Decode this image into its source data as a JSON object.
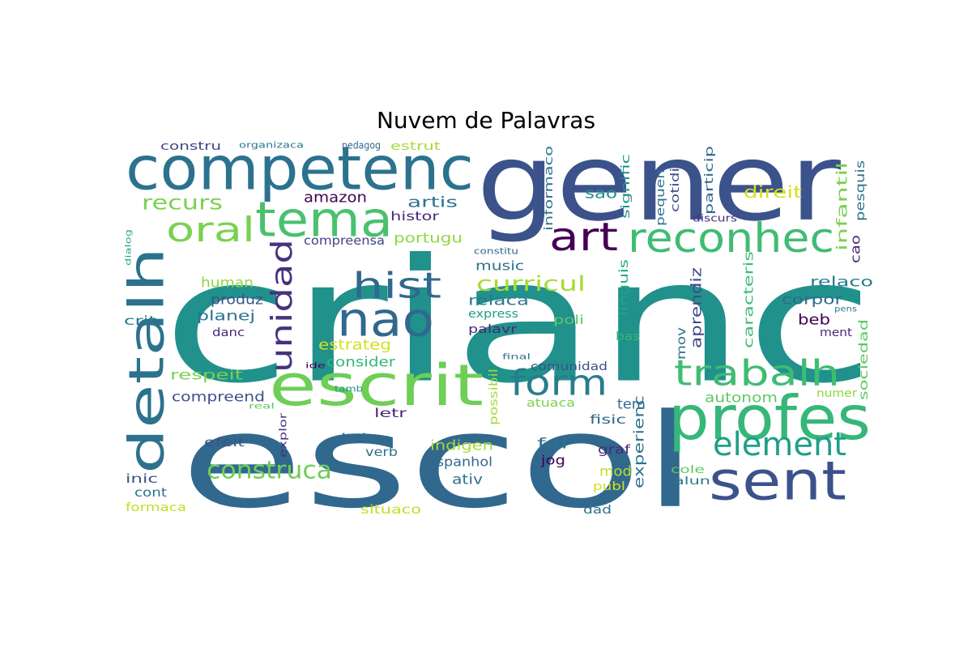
{
  "title": "Nuvem de Palavras",
  "words": [
    {
      "text": "crianc",
      "color": "#21918c"
    },
    {
      "text": "gener",
      "color": "#3b528b"
    },
    {
      "text": "escol",
      "color": "#31688e"
    },
    {
      "text": "competenc",
      "color": "#2c728e"
    },
    {
      "text": "profes",
      "color": "#35b779"
    },
    {
      "text": "escrit",
      "color": "#6ece58"
    },
    {
      "text": "nao",
      "color": "#31688e"
    },
    {
      "text": "tema",
      "color": "#4ac16d"
    },
    {
      "text": "sent",
      "color": "#3b528b"
    },
    {
      "text": "detalh",
      "color": "#2c728e"
    },
    {
      "text": "oral",
      "color": "#7ad151"
    },
    {
      "text": "reconhec",
      "color": "#3fbc73"
    },
    {
      "text": "art",
      "color": "#440154"
    },
    {
      "text": "form",
      "color": "#287c8e"
    },
    {
      "text": "trabalh",
      "color": "#3fbc73"
    },
    {
      "text": "element",
      "color": "#1f9e89"
    },
    {
      "text": "hist",
      "color": "#31688e"
    },
    {
      "text": "unidad",
      "color": "#46327e"
    },
    {
      "text": "construca",
      "color": "#6ece58"
    },
    {
      "text": "curricul",
      "color": "#a5db36"
    },
    {
      "text": "recurs",
      "color": "#7ad151"
    },
    {
      "text": "amazon",
      "color": "#440154"
    },
    {
      "text": "artis",
      "color": "#2c728e"
    },
    {
      "text": "histor",
      "color": "#482878"
    },
    {
      "text": "portugu",
      "color": "#90d743"
    },
    {
      "text": "compreensa",
      "color": "#414487"
    },
    {
      "text": "sao",
      "color": "#21918c"
    },
    {
      "text": "direit",
      "color": "#d2e21b"
    },
    {
      "text": "estrut",
      "color": "#a5db36"
    },
    {
      "text": "pedagog",
      "color": "#31688e"
    },
    {
      "text": "organizaca",
      "color": "#2a788e"
    },
    {
      "text": "constru",
      "color": "#414487"
    },
    {
      "text": "informaco",
      "color": "#2c728e"
    },
    {
      "text": "signific",
      "color": "#21918c"
    },
    {
      "text": "pequen",
      "color": "#2c728e"
    },
    {
      "text": "cotidi",
      "color": "#3b528b"
    },
    {
      "text": "particip",
      "color": "#31688e"
    },
    {
      "text": "discurs",
      "color": "#472d7b"
    },
    {
      "text": "infantil",
      "color": "#7ad151"
    },
    {
      "text": "pesquis",
      "color": "#2c728e"
    },
    {
      "text": "cao",
      "color": "#482878"
    },
    {
      "text": "relaco",
      "color": "#287c8e"
    },
    {
      "text": "corpor",
      "color": "#31688e"
    },
    {
      "text": "beb",
      "color": "#440154"
    },
    {
      "text": "ment",
      "color": "#482878"
    },
    {
      "text": "pens",
      "color": "#2a788e"
    },
    {
      "text": "sociedad",
      "color": "#5ec962"
    },
    {
      "text": "numer",
      "color": "#90d743"
    },
    {
      "text": "autonom",
      "color": "#5ec962"
    },
    {
      "text": "caracteris",
      "color": "#3fbc73"
    },
    {
      "text": "aprendiz",
      "color": "#3e4a89"
    },
    {
      "text": "linguis",
      "color": "#20a486"
    },
    {
      "text": "mov",
      "color": "#2c728e"
    },
    {
      "text": "bas",
      "color": "#35b779"
    },
    {
      "text": "poli",
      "color": "#5ec962"
    },
    {
      "text": "music",
      "color": "#2c728e"
    },
    {
      "text": "relaca",
      "color": "#2a788e"
    },
    {
      "text": "express",
      "color": "#1f9e89"
    },
    {
      "text": "palavr",
      "color": "#482878"
    },
    {
      "text": "human",
      "color": "#90d743"
    },
    {
      "text": "produz",
      "color": "#3b528b"
    },
    {
      "text": "planej",
      "color": "#2c728e"
    },
    {
      "text": "danc",
      "color": "#482878"
    },
    {
      "text": "crit",
      "color": "#2a788e"
    },
    {
      "text": "dialog",
      "color": "#22a884"
    },
    {
      "text": "estrateg",
      "color": "#d2e21b"
    },
    {
      "text": "consider",
      "color": "#35b779"
    },
    {
      "text": "respeit",
      "color": "#7ad151"
    },
    {
      "text": "compreend",
      "color": "#3b528b"
    },
    {
      "text": "comunidad",
      "color": "#3b528b"
    },
    {
      "text": "final",
      "color": "#2c728e"
    },
    {
      "text": "ide",
      "color": "#440154"
    },
    {
      "text": "tamb",
      "color": "#21918c"
    },
    {
      "text": "real",
      "color": "#5ec962"
    },
    {
      "text": "possibil",
      "color": "#a5db36"
    },
    {
      "text": "atuaca",
      "color": "#7ad151"
    },
    {
      "text": "tem",
      "color": "#31688e"
    },
    {
      "text": "experienc",
      "color": "#2c728e"
    },
    {
      "text": "fisic",
      "color": "#31688e"
    },
    {
      "text": "letr",
      "color": "#482878"
    },
    {
      "text": "efeit",
      "color": "#3b528b"
    },
    {
      "text": "explor",
      "color": "#46327e"
    },
    {
      "text": "brinc",
      "color": "#31688e"
    },
    {
      "text": "verb",
      "color": "#2c728e"
    },
    {
      "text": "indigen",
      "color": "#a5db36"
    },
    {
      "text": "espanhol",
      "color": "#31688e"
    },
    {
      "text": "fal",
      "color": "#2c728e"
    },
    {
      "text": "jog",
      "color": "#440154"
    },
    {
      "text": "graf",
      "color": "#482878"
    },
    {
      "text": "mod",
      "color": "#bddf26"
    },
    {
      "text": "publ",
      "color": "#d2e21b"
    },
    {
      "text": "cole",
      "color": "#5ec962"
    },
    {
      "text": "alun",
      "color": "#2a788e"
    },
    {
      "text": "inic",
      "color": "#3b528b"
    },
    {
      "text": "cont",
      "color": "#2c728e"
    },
    {
      "text": "ativ",
      "color": "#2c728e"
    },
    {
      "text": "formaca",
      "color": "#bddf26"
    },
    {
      "text": "situaco",
      "color": "#bddf26"
    },
    {
      "text": "dad",
      "color": "#2c728e"
    },
    {
      "text": "constitu",
      "color": "#31688e"
    }
  ]
}
